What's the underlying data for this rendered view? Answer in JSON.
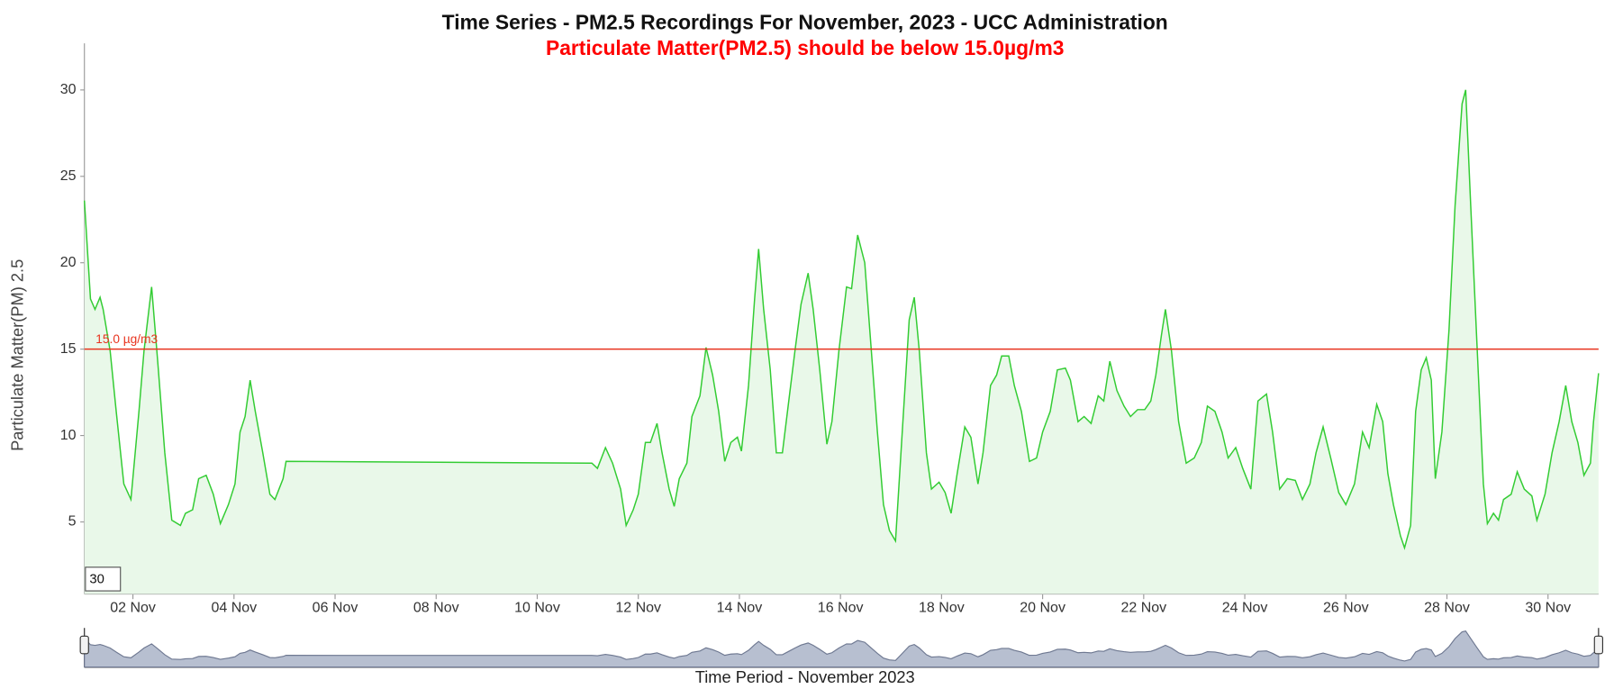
{
  "chart_data": {
    "type": "area",
    "title": "Time Series - PM2.5 Recordings For November, 2023 - UCC Administration",
    "subtitle": "Particulate Matter(PM2.5) should be below 15.0µg/m3",
    "y_label": "Particulate Matter(PM) 2.5",
    "x_label": "Time Period - November 2023",
    "zoom_input": "30",
    "color": "#33cc33",
    "fill": "#e9f8e9",
    "threshold": {
      "value": 15,
      "label": "15.0 µg/m3",
      "color": "#e8331e"
    },
    "xlim": [
      1.04,
      31.0
    ],
    "ylim": [
      0.83,
      32.7
    ],
    "xticks": [
      {
        "value": 2,
        "label": "02 Nov"
      },
      {
        "value": 4,
        "label": "04 Nov"
      },
      {
        "value": 6,
        "label": "06 Nov"
      },
      {
        "value": 8,
        "label": "08 Nov"
      },
      {
        "value": 10,
        "label": "10 Nov"
      },
      {
        "value": 12,
        "label": "12 Nov"
      },
      {
        "value": 14,
        "label": "14 Nov"
      },
      {
        "value": 16,
        "label": "16 Nov"
      },
      {
        "value": 18,
        "label": "18 Nov"
      },
      {
        "value": 20,
        "label": "20 Nov"
      },
      {
        "value": 22,
        "label": "22 Nov"
      },
      {
        "value": 24,
        "label": "24 Nov"
      },
      {
        "value": 26,
        "label": "26 Nov"
      },
      {
        "value": 28,
        "label": "28 Nov"
      },
      {
        "value": 30,
        "label": "30 Nov"
      }
    ],
    "yticks": [
      5,
      10,
      15,
      20,
      25,
      30
    ],
    "x": [
      1.04,
      1.16,
      1.25,
      1.35,
      1.41,
      1.55,
      1.67,
      1.82,
      1.96,
      2.12,
      2.22,
      2.37,
      2.49,
      2.63,
      2.77,
      2.94,
      3.04,
      3.18,
      3.3,
      3.45,
      3.59,
      3.73,
      3.89,
      4.02,
      4.12,
      4.22,
      4.32,
      4.42,
      4.57,
      4.71,
      4.81,
      4.97,
      5.03,
      11.08,
      11.19,
      11.35,
      11.49,
      11.65,
      11.76,
      11.9,
      12.0,
      12.14,
      12.24,
      12.37,
      12.47,
      12.61,
      12.71,
      12.81,
      12.96,
      13.06,
      13.22,
      13.34,
      13.47,
      13.59,
      13.71,
      13.83,
      13.96,
      14.04,
      14.18,
      14.3,
      14.38,
      14.48,
      14.61,
      14.73,
      14.85,
      14.99,
      15.1,
      15.22,
      15.36,
      15.46,
      15.59,
      15.73,
      15.83,
      15.97,
      16.12,
      16.22,
      16.34,
      16.48,
      16.58,
      16.73,
      16.85,
      16.97,
      17.09,
      17.21,
      17.36,
      17.46,
      17.56,
      17.7,
      17.8,
      17.95,
      18.07,
      18.19,
      18.31,
      18.46,
      18.58,
      18.72,
      18.82,
      18.97,
      19.09,
      19.19,
      19.33,
      19.44,
      19.58,
      19.74,
      19.88,
      20.0,
      20.15,
      20.29,
      20.45,
      20.55,
      20.7,
      20.82,
      20.96,
      21.1,
      21.21,
      21.33,
      21.47,
      21.61,
      21.74,
      21.88,
      22.02,
      22.14,
      22.24,
      22.35,
      22.43,
      22.55,
      22.69,
      22.84,
      23.0,
      23.14,
      23.26,
      23.41,
      23.55,
      23.67,
      23.82,
      23.96,
      24.12,
      24.26,
      24.43,
      24.55,
      24.69,
      24.84,
      25.0,
      25.14,
      25.29,
      25.41,
      25.55,
      25.7,
      25.86,
      26.0,
      26.17,
      26.33,
      26.46,
      26.61,
      26.73,
      26.83,
      26.94,
      27.08,
      27.16,
      27.28,
      27.38,
      27.49,
      27.59,
      27.69,
      27.77,
      27.9,
      28.04,
      28.16,
      28.3,
      28.37,
      28.47,
      28.59,
      28.72,
      28.8,
      28.92,
      29.02,
      29.12,
      29.27,
      29.39,
      29.53,
      29.68,
      29.78,
      29.94,
      30.08,
      30.22,
      30.35,
      30.47,
      30.59,
      30.71,
      30.84,
      30.9,
      31.0
    ],
    "values": [
      23.6,
      17.9,
      17.3,
      18.0,
      17.3,
      14.9,
      11.4,
      7.2,
      6.3,
      11.4,
      14.9,
      18.6,
      14.3,
      9.0,
      5.1,
      4.8,
      5.5,
      5.7,
      7.5,
      7.7,
      6.6,
      4.9,
      6.0,
      7.2,
      10.2,
      11.1,
      13.2,
      11.4,
      9.0,
      6.6,
      6.3,
      7.5,
      8.5,
      8.4,
      8.1,
      9.3,
      8.4,
      6.9,
      4.8,
      5.7,
      6.6,
      9.6,
      9.6,
      10.7,
      9.0,
      6.9,
      5.9,
      7.5,
      8.4,
      11.1,
      12.3,
      15.1,
      13.5,
      11.4,
      8.5,
      9.6,
      9.9,
      9.1,
      12.9,
      17.9,
      20.8,
      17.3,
      13.8,
      9.0,
      9.0,
      12.3,
      14.9,
      17.6,
      19.4,
      17.3,
      13.8,
      9.5,
      10.8,
      14.9,
      18.6,
      18.5,
      21.6,
      20.0,
      16.1,
      10.2,
      6.0,
      4.5,
      3.9,
      9.6,
      16.7,
      18.0,
      14.9,
      9.0,
      6.9,
      7.3,
      6.7,
      5.5,
      7.8,
      10.5,
      9.9,
      7.2,
      9.0,
      12.9,
      13.5,
      14.6,
      14.6,
      12.9,
      11.4,
      8.5,
      8.7,
      10.2,
      11.4,
      13.8,
      13.9,
      13.2,
      10.8,
      11.1,
      10.7,
      12.3,
      12.0,
      14.3,
      12.6,
      11.7,
      11.1,
      11.5,
      11.5,
      12.0,
      13.5,
      15.8,
      17.3,
      14.9,
      10.8,
      8.4,
      8.7,
      9.6,
      11.7,
      11.4,
      10.2,
      8.7,
      9.3,
      8.1,
      6.9,
      12.0,
      12.4,
      10.2,
      6.9,
      7.5,
      7.4,
      6.3,
      7.2,
      9.0,
      10.5,
      8.7,
      6.7,
      6.0,
      7.2,
      10.2,
      9.3,
      11.8,
      10.8,
      7.8,
      6.0,
      4.2,
      3.5,
      4.8,
      11.4,
      13.8,
      14.5,
      13.2,
      7.5,
      10.2,
      16.1,
      23.3,
      29.2,
      30.0,
      23.3,
      15.5,
      7.2,
      4.9,
      5.5,
      5.1,
      6.3,
      6.6,
      7.9,
      6.9,
      6.5,
      5.1,
      6.6,
      9.0,
      10.8,
      12.9,
      10.8,
      9.6,
      7.7,
      8.4,
      10.8,
      13.6
    ]
  }
}
